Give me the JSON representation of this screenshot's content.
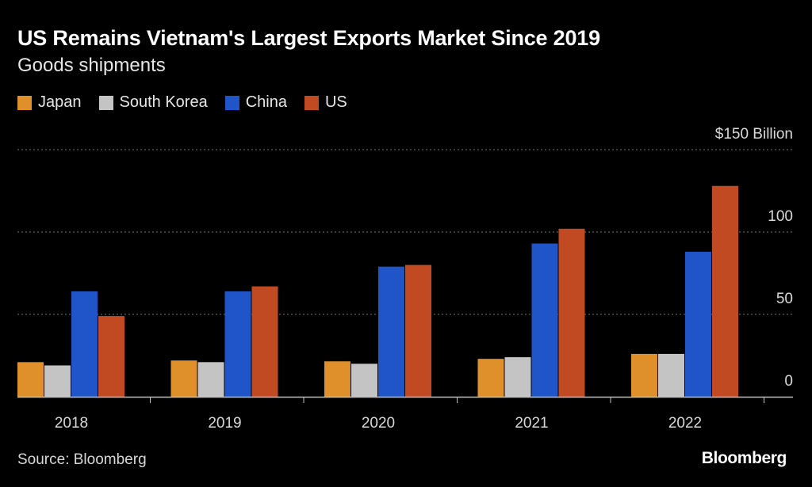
{
  "header": {
    "title": "US Remains Vietnam's Largest Exports Market Since 2019",
    "subtitle": "Goods shipments"
  },
  "legend": [
    {
      "label": "Japan",
      "color": "#e0902a"
    },
    {
      "label": "South Korea",
      "color": "#c4c4c4"
    },
    {
      "label": "China",
      "color": "#1f55c8"
    },
    {
      "label": "US",
      "color": "#c24a22"
    }
  ],
  "footer": {
    "source": "Source: Bloomberg",
    "logo": "Bloomberg"
  },
  "chart_data": {
    "type": "bar",
    "title": "US Remains Vietnam's Largest Exports Market Since 2019",
    "subtitle": "Goods shipments",
    "xlabel": "",
    "ylabel": "",
    "unit_label": "Billion",
    "ylim": [
      0,
      150
    ],
    "yticks": [
      0,
      50,
      100,
      150
    ],
    "ytick_labels": [
      "0",
      "50",
      "100",
      "$150"
    ],
    "grid": true,
    "legend_position": "top-left",
    "categories": [
      "2018",
      "2019",
      "2020",
      "2021",
      "2022"
    ],
    "series": [
      {
        "name": "Japan",
        "color": "#e0902a",
        "values": [
          21,
          22,
          21.5,
          23,
          26
        ]
      },
      {
        "name": "South Korea",
        "color": "#c4c4c4",
        "values": [
          19,
          21,
          20,
          24,
          26
        ]
      },
      {
        "name": "China",
        "color": "#1f55c8",
        "values": [
          64,
          64,
          79,
          93,
          88
        ]
      },
      {
        "name": "US",
        "color": "#c24a22",
        "values": [
          49,
          67,
          80,
          102,
          128
        ]
      }
    ]
  }
}
